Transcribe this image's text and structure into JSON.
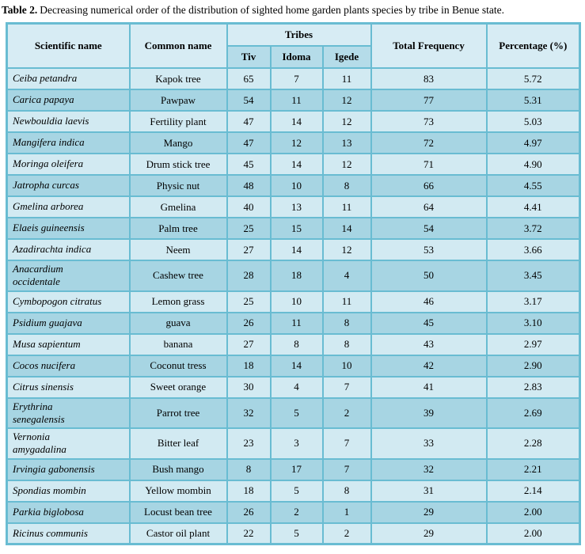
{
  "title": {
    "label": "Table 2.",
    "text": "Decreasing numerical order of the distribution of sighted home garden plants species by tribe in Benue state."
  },
  "colors": {
    "border": "#69bcd2",
    "header_bg": "#d7ecf4",
    "subheader_bg": "#b5dce9",
    "row_light": "#d2eaf2",
    "row_dark": "#a7d5e3",
    "text": "#000000"
  },
  "table": {
    "headers": {
      "scientific": "Scientific name",
      "common": "Common name",
      "tribes": "Tribes",
      "tribe_cols": [
        "Tiv",
        "Idoma",
        "Igede"
      ],
      "total": "Total Frequency",
      "percentage": "Percentage (%)"
    },
    "rows": [
      {
        "scientific": "Ceiba petandra",
        "common": "Kapok tree",
        "tiv": "65",
        "idoma": "7",
        "igede": "11",
        "total": "83",
        "pct": "5.72"
      },
      {
        "scientific": "Carica papaya",
        "common": "Pawpaw",
        "tiv": "54",
        "idoma": "11",
        "igede": "12",
        "total": "77",
        "pct": "5.31"
      },
      {
        "scientific": "Newbouldia laevis",
        "common": "Fertility plant",
        "tiv": "47",
        "idoma": "14",
        "igede": "12",
        "total": "73",
        "pct": "5.03"
      },
      {
        "scientific": "Mangifera indica",
        "common": "Mango",
        "tiv": "47",
        "idoma": "12",
        "igede": "13",
        "total": "72",
        "pct": "4.97"
      },
      {
        "scientific": "Moringa oleifera",
        "common": "Drum stick tree",
        "tiv": "45",
        "idoma": "14",
        "igede": "12",
        "total": "71",
        "pct": "4.90"
      },
      {
        "scientific": "Jatropha curcas",
        "common": "Physic nut",
        "tiv": "48",
        "idoma": "10",
        "igede": "8",
        "total": "66",
        "pct": "4.55"
      },
      {
        "scientific": "Gmelina arborea",
        "common": "Gmelina",
        "tiv": "40",
        "idoma": "13",
        "igede": "11",
        "total": "64",
        "pct": "4.41"
      },
      {
        "scientific": "Elaeis guineensis",
        "common": "Palm tree",
        "tiv": "25",
        "idoma": "15",
        "igede": "14",
        "total": "54",
        "pct": "3.72"
      },
      {
        "scientific": "Azadirachta indica",
        "common": "Neem",
        "tiv": "27",
        "idoma": "14",
        "igede": "12",
        "total": "53",
        "pct": "3.66"
      },
      {
        "scientific": "Anacardium\noccidentale",
        "common": "Cashew tree",
        "tiv": "28",
        "idoma": "18",
        "igede": "4",
        "total": "50",
        "pct": "3.45"
      },
      {
        "scientific": "Cymbopogon citratus",
        "common": "Lemon grass",
        "tiv": "25",
        "idoma": "10",
        "igede": "11",
        "total": "46",
        "pct": "3.17"
      },
      {
        "scientific": "Psidium guajava",
        "common": "guava",
        "tiv": "26",
        "idoma": "11",
        "igede": "8",
        "total": "45",
        "pct": "3.10"
      },
      {
        "scientific": "Musa sapientum",
        "common": "banana",
        "tiv": "27",
        "idoma": "8",
        "igede": "8",
        "total": "43",
        "pct": "2.97"
      },
      {
        "scientific": "Cocos nucifera",
        "common": "Coconut tress",
        "tiv": "18",
        "idoma": "14",
        "igede": "10",
        "total": "42",
        "pct": "2.90"
      },
      {
        "scientific": "Citrus sinensis",
        "common": "Sweet orange",
        "tiv": "30",
        "idoma": "4",
        "igede": "7",
        "total": "41",
        "pct": "2.83"
      },
      {
        "scientific": "Erythrina\nsenegalensis",
        "common": "Parrot tree",
        "tiv": "32",
        "idoma": "5",
        "igede": "2",
        "total": "39",
        "pct": "2.69"
      },
      {
        "scientific": "Vernonia\namygadalina",
        "common": "Bitter leaf",
        "tiv": "23",
        "idoma": "3",
        "igede": "7",
        "total": "33",
        "pct": "2.28"
      },
      {
        "scientific": "Irvingia gabonensis",
        "common": "Bush mango",
        "tiv": "8",
        "idoma": "17",
        "igede": "7",
        "total": "32",
        "pct": "2.21"
      },
      {
        "scientific": "Spondias mombin",
        "common": "Yellow mombin",
        "tiv": "18",
        "idoma": "5",
        "igede": "8",
        "total": "31",
        "pct": "2.14"
      },
      {
        "scientific": "Parkia biglobosa",
        "common": "Locust bean tree",
        "tiv": "26",
        "idoma": "2",
        "igede": "1",
        "total": "29",
        "pct": "2.00"
      },
      {
        "scientific": "Ricinus communis",
        "common": "Castor oil plant",
        "tiv": "22",
        "idoma": "5",
        "igede": "2",
        "total": "29",
        "pct": "2.00"
      }
    ]
  }
}
